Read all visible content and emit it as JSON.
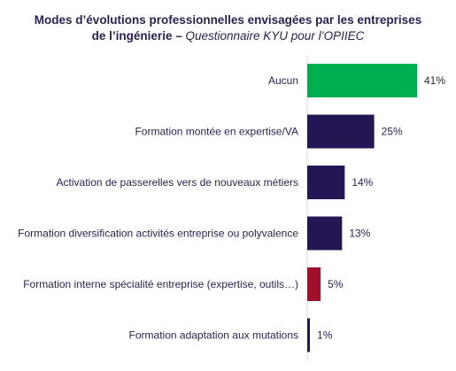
{
  "title": {
    "line1": "Modes d’évolutions professionnelles envisagées par les entreprises",
    "line2_bold": "de l’ingénierie –",
    "line2_italic": "Questionnaire KYU pour l’OPIIEC"
  },
  "chart_data": {
    "type": "bar",
    "orientation": "horizontal",
    "categories": [
      "Aucun",
      "Formation montée en expertise/VA",
      "Activation de passerelles vers de nouveaux métiers",
      "Formation diversification activités entreprise ou polyvalence",
      "Formation interne spécialité entreprise (expertise, outils…)",
      "Formation adaptation aux mutations"
    ],
    "values": [
      41,
      25,
      14,
      13,
      5,
      1
    ],
    "value_labels": [
      "41%",
      "25%",
      "14%",
      "13%",
      "5%",
      "1%"
    ],
    "colors": [
      "#00b050",
      "#241654",
      "#241654",
      "#241654",
      "#a0102a",
      "#241654"
    ],
    "unit": "%",
    "xlim": [
      0,
      41
    ],
    "grid": false
  }
}
